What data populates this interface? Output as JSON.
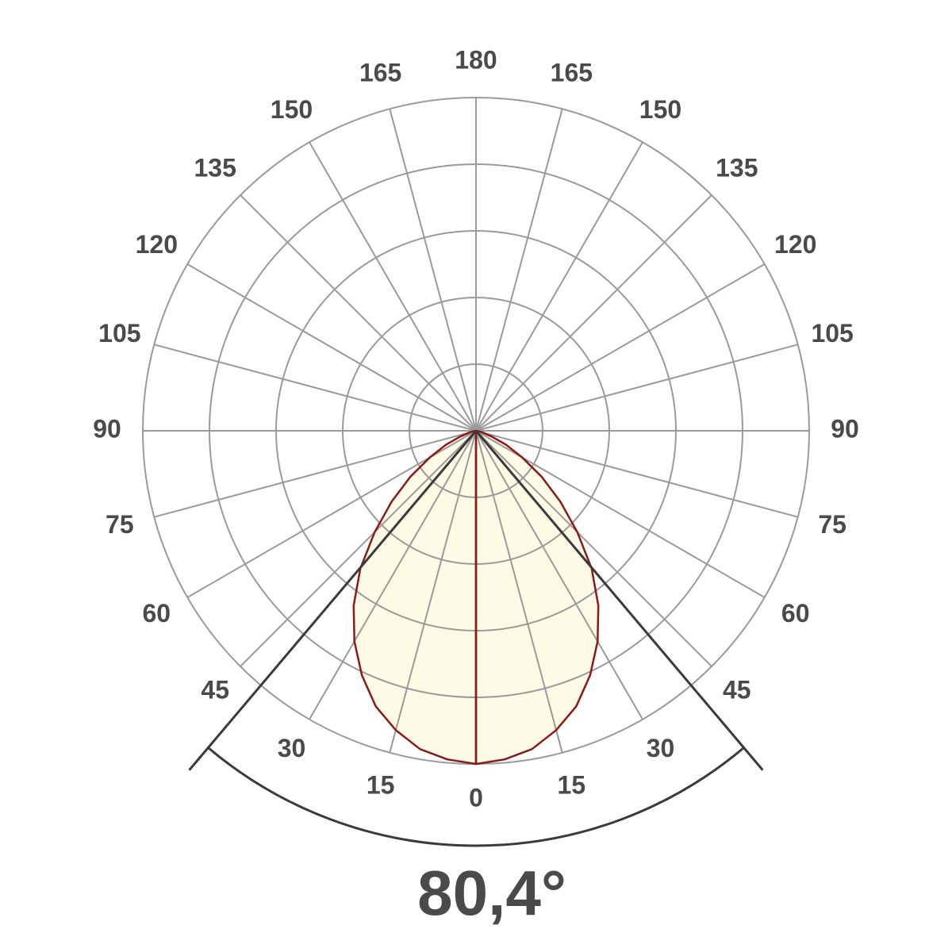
{
  "chart_data": {
    "type": "polar",
    "symmetric": true,
    "angle_ticks": [
      0,
      15,
      30,
      45,
      60,
      75,
      90,
      105,
      120,
      135,
      150,
      165,
      180
    ],
    "rlim": [
      0,
      100
    ],
    "rticks": [
      20,
      40,
      60,
      80,
      100
    ],
    "angles": [
      0,
      5,
      10,
      15,
      20,
      25,
      30,
      35,
      40,
      45,
      50,
      55,
      60,
      65,
      70,
      75,
      80,
      85,
      90
    ],
    "values": [
      100,
      99,
      97,
      93,
      88,
      81,
      73,
      64,
      54,
      43,
      33,
      24,
      16,
      10,
      5,
      2,
      1,
      0,
      0
    ],
    "color": "#8b1a1a",
    "fill": "#fdfbe6",
    "grid_color": "#9a9a9a",
    "beam_angle": 80.4,
    "beam_angle_label": "80,4°"
  }
}
